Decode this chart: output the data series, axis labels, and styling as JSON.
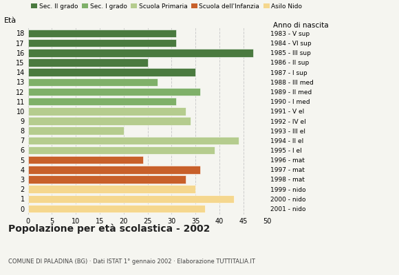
{
  "ages": [
    18,
    17,
    16,
    15,
    14,
    13,
    12,
    11,
    10,
    9,
    8,
    7,
    6,
    5,
    4,
    3,
    2,
    1,
    0
  ],
  "values": [
    31,
    31,
    47,
    25,
    35,
    27,
    36,
    31,
    33,
    34,
    20,
    44,
    39,
    24,
    36,
    33,
    35,
    43,
    37
  ],
  "colors": [
    "#4a7a3f",
    "#4a7a3f",
    "#4a7a3f",
    "#4a7a3f",
    "#4a7a3f",
    "#7fb069",
    "#7fb069",
    "#7fb069",
    "#b5cc8e",
    "#b5cc8e",
    "#b5cc8e",
    "#b5cc8e",
    "#b5cc8e",
    "#c8602a",
    "#c8602a",
    "#c8602a",
    "#f5d78e",
    "#f5d78e",
    "#f5d78e"
  ],
  "right_labels": [
    "1983 - V sup",
    "1984 - VI sup",
    "1985 - III sup",
    "1986 - II sup",
    "1987 - I sup",
    "1988 - III med",
    "1989 - II med",
    "1990 - I med",
    "1991 - V el",
    "1992 - IV el",
    "1993 - III el",
    "1994 - II el",
    "1995 - I el",
    "1996 - mat",
    "1997 - mat",
    "1998 - mat",
    "1999 - nido",
    "2000 - nido",
    "2001 - nido"
  ],
  "legend_labels": [
    "Sec. II grado",
    "Sec. I grado",
    "Scuola Primaria",
    "Scuola dell'Infanzia",
    "Asilo Nido"
  ],
  "legend_colors": [
    "#4a7a3f",
    "#7fb069",
    "#b5cc8e",
    "#c8602a",
    "#f5d78e"
  ],
  "title": "Popolazione per età scolastica - 2002",
  "subtitle": "COMUNE DI PALADINA (BG) · Dati ISTAT 1° gennaio 2002 · Elaborazione TUTTITALIA.IT",
  "left_ylabel": "Età",
  "right_ylabel": "Anno di nascita",
  "xlim": [
    0,
    50
  ],
  "xticks": [
    0,
    5,
    10,
    15,
    20,
    25,
    30,
    35,
    40,
    45,
    50
  ],
  "bg_color": "#f5f5f0",
  "bar_height": 0.82
}
